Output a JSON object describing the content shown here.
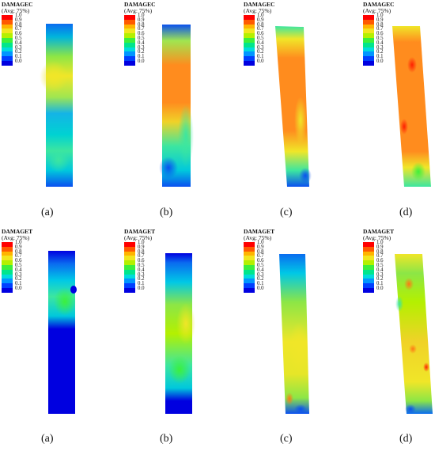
{
  "legend_ticks": [
    "1.0",
    "0.9",
    "0.8",
    "0.7",
    "0.6",
    "0.5",
    "0.4",
    "0.3",
    "0.2",
    "0.1",
    "0.0"
  ],
  "legend_colors": [
    "#ff0000",
    "#ff5a00",
    "#ffb400",
    "#f2e61e",
    "#b4f000",
    "#3cf03c",
    "#00e68c",
    "#00dcdc",
    "#0096ff",
    "#0040ff",
    "#0000e0"
  ],
  "rows": [
    {
      "variable": "DAMAGEC",
      "average": "(Avg: 75%)",
      "panels": [
        {
          "caption": "(a)"
        },
        {
          "caption": "(b)"
        },
        {
          "caption": "(c)"
        },
        {
          "caption": "(d)"
        }
      ]
    },
    {
      "variable": "DAMAGET",
      "average": "(Avg: 75%)",
      "panels": [
        {
          "caption": "(a)"
        },
        {
          "caption": "(b)"
        },
        {
          "caption": "(c)"
        },
        {
          "caption": "(d)"
        }
      ]
    }
  ]
}
